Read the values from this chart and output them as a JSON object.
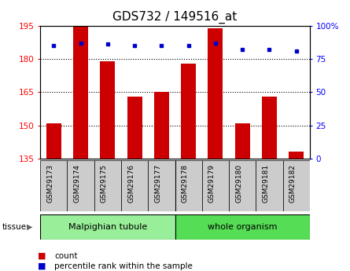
{
  "title": "GDS732 / 149516_at",
  "samples": [
    "GSM29173",
    "GSM29174",
    "GSM29175",
    "GSM29176",
    "GSM29177",
    "GSM29178",
    "GSM29179",
    "GSM29180",
    "GSM29181",
    "GSM29182"
  ],
  "counts": [
    151,
    195,
    179,
    163,
    165,
    178,
    194,
    151,
    163,
    138
  ],
  "percentiles": [
    85,
    87,
    86,
    85,
    85,
    85,
    87,
    82,
    82,
    81
  ],
  "ylim_left": [
    135,
    195
  ],
  "ylim_right": [
    0,
    100
  ],
  "yticks_left": [
    135,
    150,
    165,
    180,
    195
  ],
  "yticks_right": [
    0,
    25,
    50,
    75,
    100
  ],
  "bar_color": "#cc0000",
  "dot_color": "#0000cc",
  "tissue_groups": [
    {
      "label": "Malpighian tubule",
      "n": 5,
      "color": "#99ee99"
    },
    {
      "label": "whole organism",
      "n": 5,
      "color": "#55dd55"
    }
  ],
  "tissue_label": "tissue",
  "legend_items": [
    {
      "label": "count",
      "color": "#cc0000"
    },
    {
      "label": "percentile rank within the sample",
      "color": "#0000cc"
    }
  ],
  "bar_width": 0.55,
  "bg_color": "#ffffff",
  "plot_bg_color": "#ffffff",
  "xtick_bg_color": "#cccccc",
  "tick_label_fontsize": 7.5,
  "title_fontsize": 11,
  "grid_lines_at": [
    150,
    165,
    180
  ]
}
